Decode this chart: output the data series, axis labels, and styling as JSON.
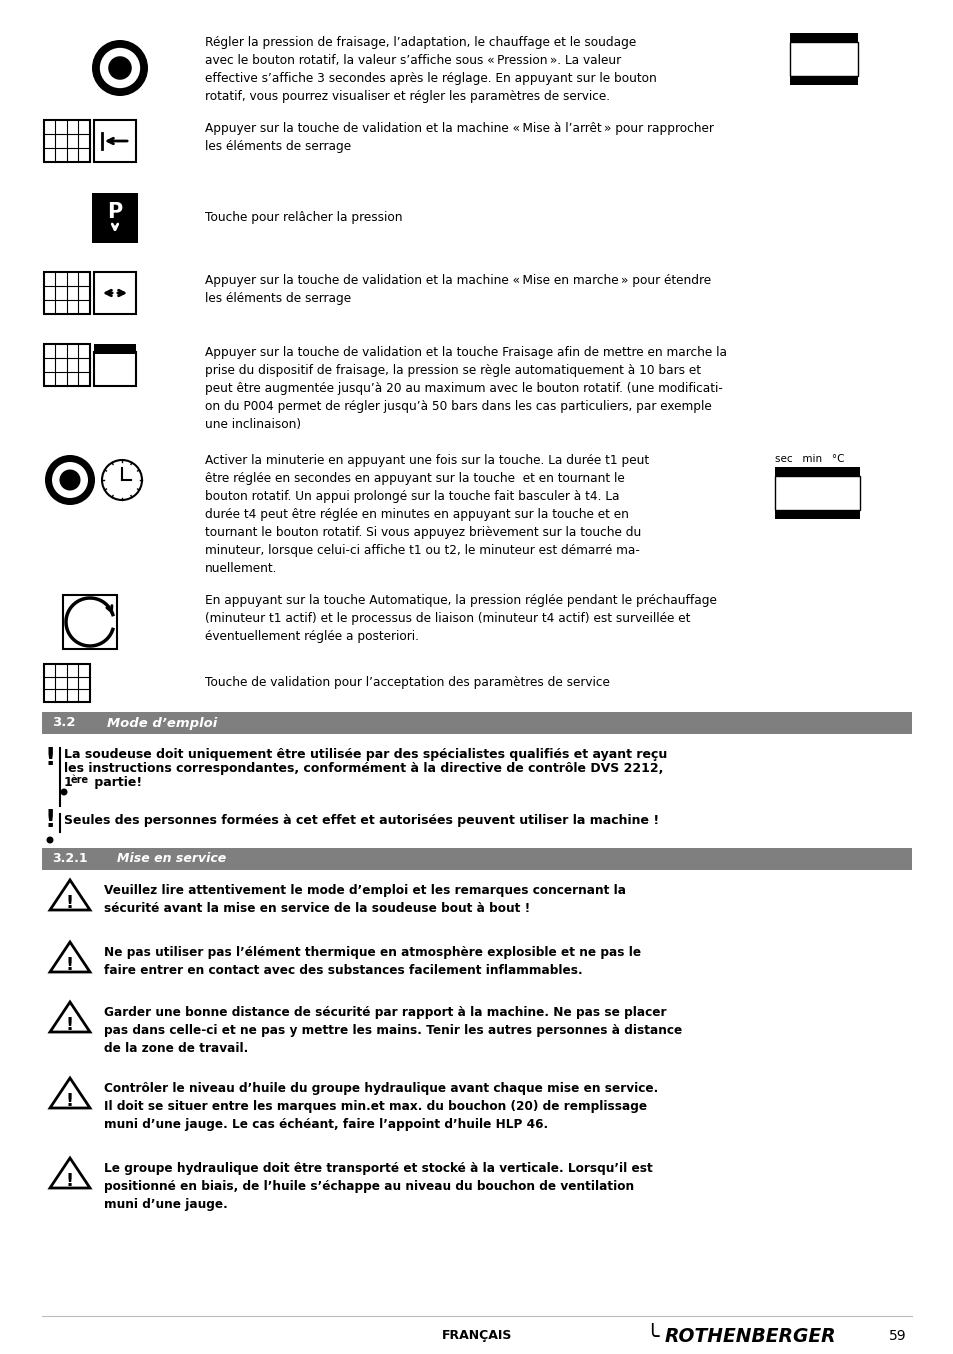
{
  "bg_color": "#ffffff",
  "page_number": "59",
  "footer_left": "FRANÇAIS",
  "footer_brand": "ROTHENBERGER",
  "section_32_label": "3.2",
  "section_32_title": "Mode d’emploi",
  "section_321_label": "3.2.1",
  "section_321_title": "Mise en service",
  "item1_text": "Régler la pression de fraisage, l’adaptation, le chauffage et le soudage\navec le bouton rotatif, la valeur s’affiche sous « Pression ». La valeur\neffective s’affiche 3 secondes après le réglage. En appuyant sur le bouton\nrotatif, vous pourrez visualiser et régler les paramètres de service.",
  "item2_text": "Appuyer sur la touche de validation et la machine « Mise à l’arrêt » pour rapprocher\nles éléments de serrage",
  "item3_text": "Touche pour relâcher la pression",
  "item4_text": "Appuyer sur la touche de validation et la machine « Mise en marche » pour étendre\nles éléments de serrage",
  "item5_text": "Appuyer sur la touche de validation et la touche Fraisage afin de mettre en marche la\nprise du dispositif de fraisage, la pression se règle automatiquement à 10 bars et\npeut être augmentée jusqu’à 20 au maximum avec le bouton rotatif. (une modificati-\non du P004 permet de régler jusqu’à 50 bars dans les cas particuliers, par exemple\nune inclinaison)",
  "item6_text": "Activer la minuterie en appuyant une fois sur la touche. La durée t1 peut\nêtre réglée en secondes en appuyant sur la touche  et en tournant le\nbouton rotatif. Un appui prolongé sur la touche fait basculer à t4. La\ndurée t4 peut être réglée en minutes en appuyant sur la touche et en\ntournant le bouton rotatif. Si vous appuyez brièvement sur la touche du\nminuteur, lorsque celui-ci affiche t1 ou t2, le minuteur est démarré ma-\nnuellement.",
  "item7_text": "En appuyant sur la touche Automatique, la pression réglée pendant le préchauffage\n(minuteur t1 actif) et le processus de liaison (minuteur t4 actif) est surveillée et\néventuellement réglée a posteriori.",
  "item8_text": "Touche de validation pour l’acceptation des paramètres de service",
  "wb1_line1": "La soudeuse doit uniquement être utilisée par des spécialistes qualifiés et ayant reçu",
  "wb1_line2": "les instructions correspondantes, conformément à la directive de contrôle DVS 2212,",
  "wb1_line3": "1ère partie!",
  "wb2_line1": "Seules des personnes formées à cet effet et autorisées peuvent utiliser la machine !",
  "warn1_line1": "Veuillez lire attentivement le mode d’emploi et les remarques concernant la",
  "warn1_line2": "sécurité avant la mise en service de la soudeuse bout à bout !",
  "warn2_line1": "Ne pas utiliser pas l’élément thermique en atmosphère explosible et ne pas le",
  "warn2_line2": "faire entrer en contact avec des substances facilement inflammables.",
  "warn3_line1": "Garder une bonne distance de sécurité par rapport à la machine. Ne pas se placer",
  "warn3_line2": "pas dans celle-ci et ne pas y mettre les mains. Tenir les autres personnes à distance",
  "warn3_line3": "de la zone de travail.",
  "warn4_line1": "Contrôler le niveau d’huile du groupe hydraulique avant chaque mise en service.",
  "warn4_line2": "Il doit se situer entre les marques min.et max. du bouchon (20) de remplissage",
  "warn4_line3": "muni d’une jauge. Le cas échéant, faire l’appoint d’huile HLP 46.",
  "warn5_line1": "Le groupe hydraulique doit être transporté et stocké à la verticale. Lorsqu’il est",
  "warn5_line2": "positionné en biais, de l’huile s’échappe au niveau du bouchon de ventilation",
  "warn5_line3": "muni d’une jauge.",
  "timer_labels": "sec   min   °C"
}
